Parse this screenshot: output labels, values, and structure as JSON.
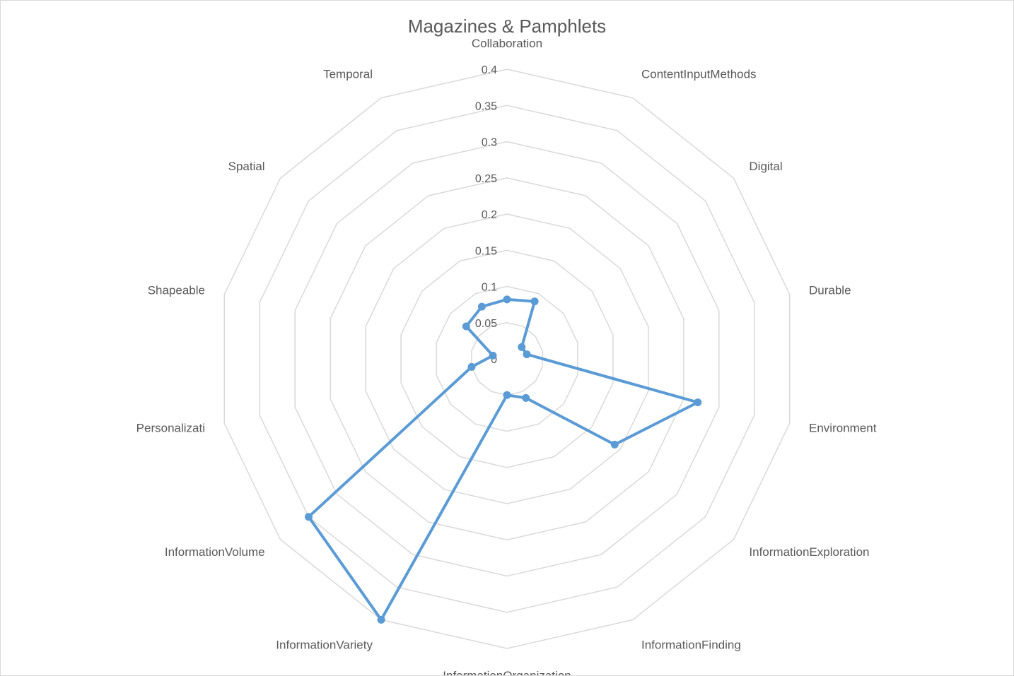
{
  "chart_data": {
    "type": "radar",
    "title": "Magazines & Pamphlets",
    "categories": [
      "Collaboration",
      "ContentInputMethods",
      "Digital",
      "Durable",
      "Environment",
      "InformationExploration",
      "InformationFinding",
      "InformationOrganization",
      "InformationVariety",
      "InformationVolume",
      "Personalizati",
      "Shapeable",
      "Spatial",
      "Temporal"
    ],
    "series": [
      {
        "values": [
          0.082,
          0.088,
          0.026,
          0.028,
          0.27,
          0.19,
          0.06,
          0.05,
          0.4,
          0.35,
          0.05,
          0.02,
          0.072,
          0.08
        ]
      }
    ],
    "ylim": [
      0,
      0.4
    ],
    "ticks": [
      "0",
      "0.05",
      "0.1",
      "0.15",
      "0.2",
      "0.25",
      "0.3",
      "0.35",
      "0.4"
    ],
    "grid": true,
    "legend": "none",
    "colors": {
      "series": "#5b9bd5",
      "grid": "#d9d9d9",
      "text": "#595959"
    }
  }
}
